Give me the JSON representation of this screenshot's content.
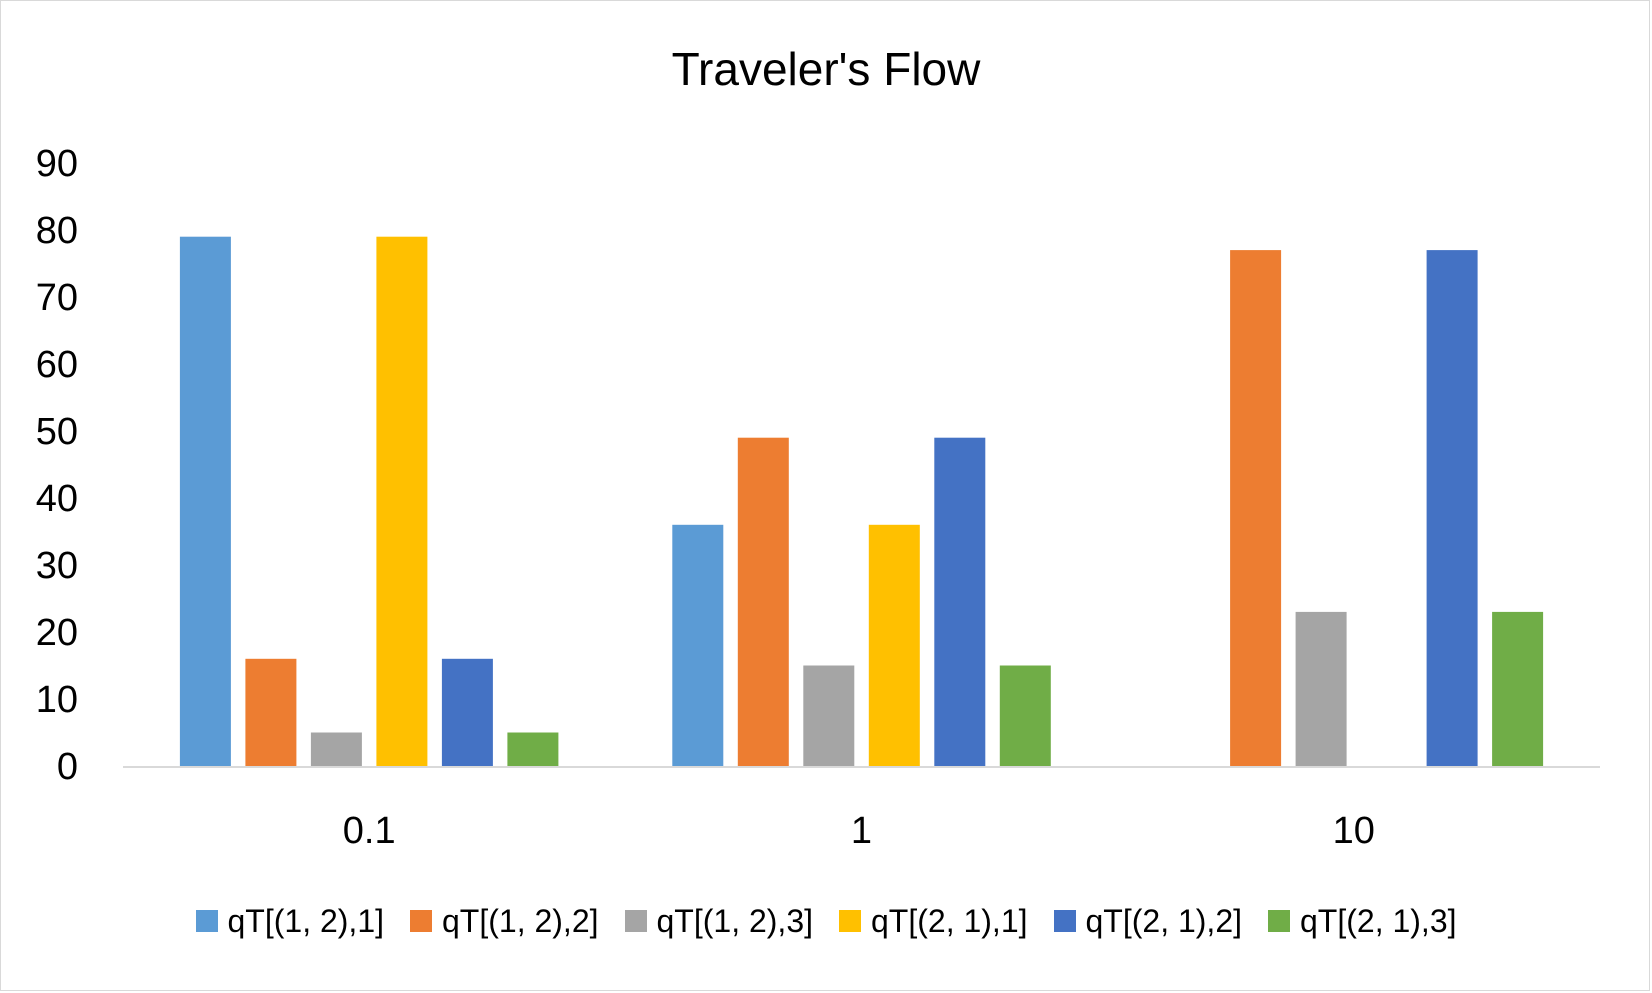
{
  "chart_data": {
    "type": "bar",
    "title": "Traveler's Flow",
    "xlabel": "",
    "ylabel": "",
    "ylim": [
      0,
      90
    ],
    "yticks": [
      "0",
      "10",
      "20",
      "30",
      "40",
      "50",
      "60",
      "70",
      "80",
      "90"
    ],
    "categories": [
      "0.1",
      "1",
      "10"
    ],
    "grid": false,
    "legend_position": "bottom",
    "series": [
      {
        "name": "qT[(1, 2),1]",
        "color": "#5b9bd5",
        "values": [
          79,
          36,
          0
        ]
      },
      {
        "name": "qT[(1, 2),2]",
        "color": "#ed7d31",
        "values": [
          16,
          49,
          77
        ]
      },
      {
        "name": "qT[(1, 2),3]",
        "color": "#a5a5a5",
        "values": [
          5,
          15,
          23
        ]
      },
      {
        "name": "qT[(2, 1),1]",
        "color": "#ffc000",
        "values": [
          79,
          36,
          0
        ]
      },
      {
        "name": "qT[(2, 1),2]",
        "color": "#4472c4",
        "values": [
          16,
          49,
          77
        ]
      },
      {
        "name": "qT[(2, 1),3]",
        "color": "#70ad47",
        "values": [
          5,
          15,
          23
        ]
      }
    ]
  }
}
